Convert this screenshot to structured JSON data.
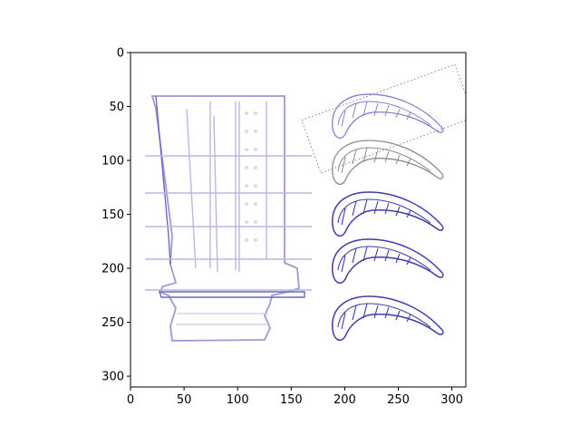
{
  "chart_data": {
    "type": "image",
    "title": "",
    "xlabel": "",
    "ylabel": "",
    "xlim": [
      0,
      313
    ],
    "ylim": [
      310,
      0
    ],
    "x_ticks": [
      0,
      50,
      100,
      150,
      200,
      250,
      300
    ],
    "y_ticks": [
      0,
      50,
      100,
      150,
      200,
      250,
      300
    ],
    "grid": false,
    "image_content": "turbine blade line drawing with five airfoil cross-sections",
    "colors": {
      "line": "#4a4aa8",
      "line_light": "#b8b8e0",
      "section_gray": "#8a8a8a"
    }
  }
}
